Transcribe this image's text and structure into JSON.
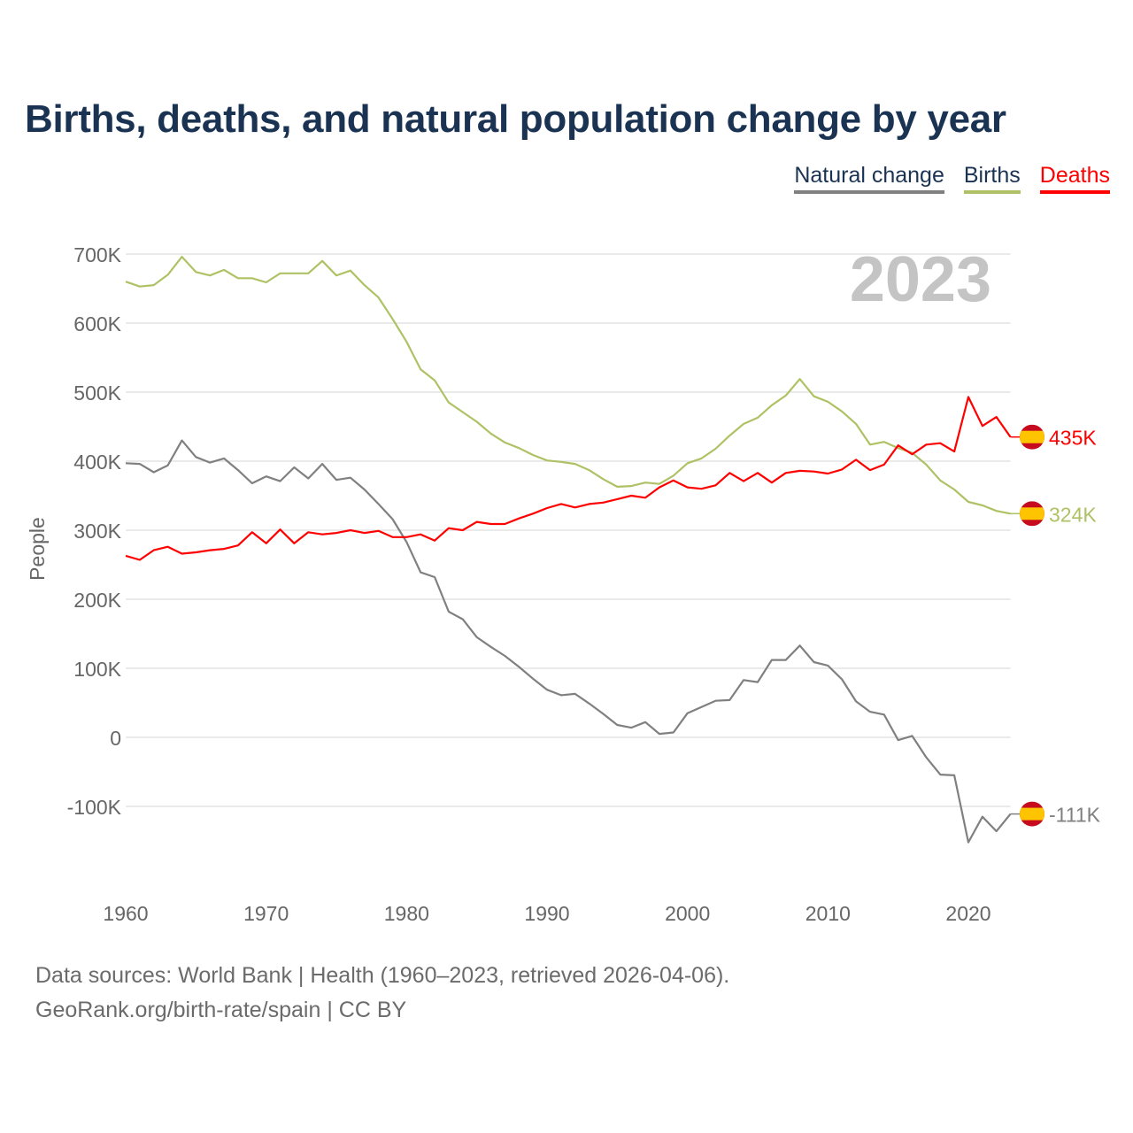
{
  "title": "Births, deaths, and natural population change by year",
  "legend": [
    {
      "label": "Natural change",
      "color": "#808080"
    },
    {
      "label": "Births",
      "color": "#aec265"
    },
    {
      "label": "Deaths",
      "color": "#ff0000"
    }
  ],
  "year_watermark": "2023",
  "footer": {
    "line1": "Data sources: World Bank | Health (1960–2023, retrieved 2026-04-06).",
    "line2": "GeoRank.org/birth-rate/spain | CC BY"
  },
  "chart_data": {
    "type": "line",
    "title": "Births, deaths, and natural population change by year",
    "xlabel": "",
    "ylabel": "People",
    "xlim": [
      1960,
      2023
    ],
    "ylim": [
      -160000,
      720000
    ],
    "x_ticks": [
      1960,
      1970,
      1980,
      1990,
      2000,
      2010,
      2020
    ],
    "y_ticks": [
      -100000,
      0,
      100000,
      200000,
      300000,
      400000,
      500000,
      600000,
      700000
    ],
    "y_tick_labels": [
      "-100K",
      "0",
      "100K",
      "200K",
      "300K",
      "400K",
      "500K",
      "600K",
      "700K"
    ],
    "grid": true,
    "legend_position": "top-right",
    "x_start": 1960,
    "series": [
      {
        "name": "Natural change",
        "color": "#808080",
        "end_label": "-111K",
        "values": [
          397,
          396,
          384,
          394,
          430,
          406,
          398,
          404,
          387,
          368,
          378,
          371,
          391,
          375,
          396,
          373,
          376,
          359,
          338,
          316,
          283,
          239,
          232,
          182,
          171,
          145,
          131,
          118,
          102,
          85,
          69,
          61,
          63,
          49,
          34,
          18,
          14,
          22,
          5,
          7,
          35,
          44,
          53,
          54,
          83,
          80,
          112,
          112,
          133,
          109,
          104,
          84,
          52,
          37,
          33,
          -4,
          2,
          -29,
          -54,
          -55,
          -152,
          -115,
          -136,
          -111
        ]
      },
      {
        "name": "Births",
        "color": "#aec265",
        "end_label": "324K",
        "values": [
          660,
          653,
          655,
          670,
          696,
          674,
          669,
          677,
          665,
          665,
          659,
          672,
          672,
          672,
          690,
          669,
          676,
          655,
          637,
          606,
          573,
          533,
          517,
          485,
          471,
          457,
          440,
          427,
          419,
          409,
          401,
          399,
          396,
          387,
          374,
          363,
          364,
          369,
          367,
          379,
          397,
          404,
          418,
          437,
          454,
          463,
          481,
          495,
          519,
          494,
          486,
          472,
          454,
          424,
          428,
          419,
          412,
          395,
          372,
          359,
          341,
          336,
          328,
          324
        ]
      },
      {
        "name": "Deaths",
        "color": "#ff0000",
        "end_label": "435K",
        "values": [
          263,
          257,
          271,
          276,
          266,
          268,
          271,
          273,
          278,
          297,
          281,
          301,
          281,
          297,
          294,
          296,
          300,
          296,
          299,
          290,
          290,
          294,
          285,
          303,
          300,
          312,
          309,
          309,
          317,
          324,
          332,
          338,
          333,
          338,
          340,
          345,
          350,
          347,
          362,
          372,
          362,
          360,
          365,
          383,
          371,
          383,
          369,
          383,
          386,
          385,
          382,
          388,
          402,
          387,
          395,
          423,
          410,
          424,
          426,
          414,
          493,
          451,
          464,
          435
        ]
      }
    ],
    "value_unit": "thousands"
  }
}
